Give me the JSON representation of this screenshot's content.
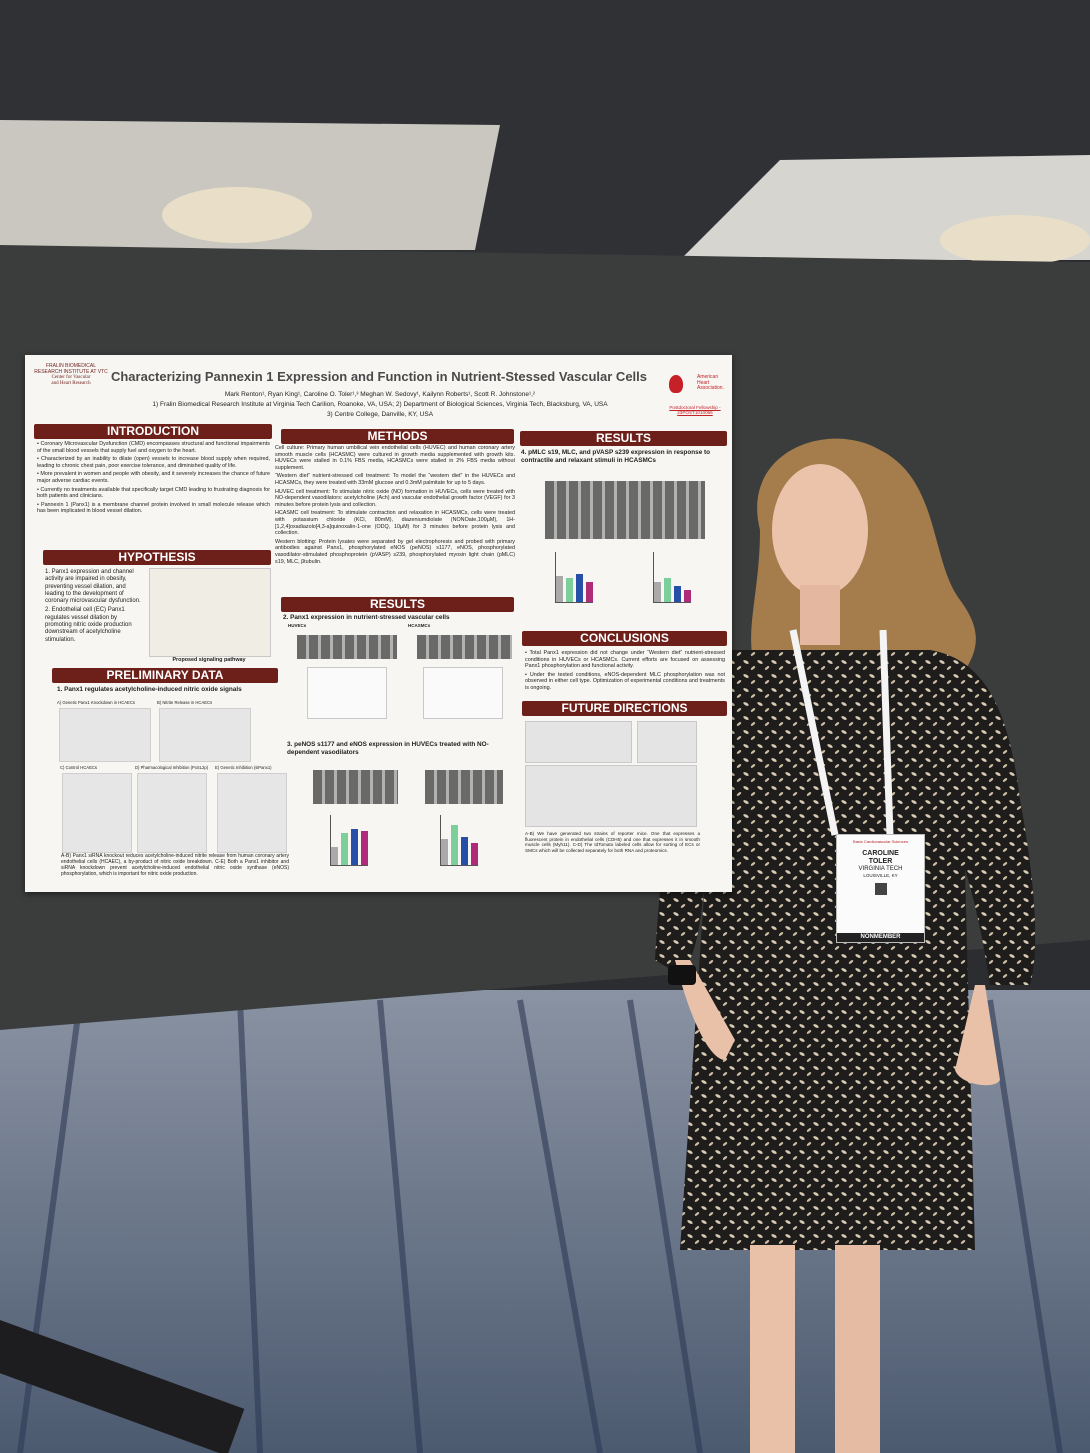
{
  "poster": {
    "institution": [
      "FRALIN BIOMEDICAL",
      "RESEARCH INSTITUTE AT VTC",
      "Center for Vascular",
      "and Heart Research"
    ],
    "title": "Characterizing Pannexin 1 Expression and Function in Nutrient-Stessed Vascular Cells",
    "authors": "Mark Renton¹, Ryan King¹, Caroline O. Toler¹,³ Meghan W. Sedovy¹, Kailynn Roberts¹, Scott R. Johnstone¹,²",
    "affiliations": [
      "1) Fralin Biomedical Research Institute at Virginia Tech Carilion, Roanoke, VA, USA; 2) Department of Biological Sciences, Virginia Tech, Blacksburg, VA, USA",
      "3) Centre College, Danville, KY, USA"
    ],
    "aha": {
      "name": [
        "American",
        "Heart",
        "Association."
      ],
      "grant": "Postdoctoral Fellowship - 23POST1010066"
    },
    "introduction": {
      "heading": "INTRODUCTION",
      "items": [
        "• Coronary Microvascular Dysfunction (CMD) encompasses structural and functional impairments of the small blood vessels that supply fuel and oxygen to the heart.",
        "• Characterized by an inability to dilate (open) vessels to increase blood supply when required, leading to chronic chest pain, poor exercise tolerance, and diminished quality of life.",
        "• More prevalent in women and people with obesity, and it severely increases the chance of future major adverse cardiac events.",
        "• Currently no treatments available that specifically target CMD leading to frustrating diagnosis for both patients and clinicians.",
        "• Pannexin 1 (Panx1) is a membrane channel protein involved in small molecule release which has been implicated in blood vessel dilation."
      ]
    },
    "hypothesis": {
      "heading": "HYPOTHESIS",
      "items": [
        "1. Panx1 expression and channel activity are impaired in obesity, preventing vessel dilation, and leading to the development of coronary microvascular dysfunction.",
        "2. Endothelial cell (EC) Panx1 regulates vessel dilation by promoting nitric oxide production downstream of acetylcholine stimulation."
      ],
      "caption": "Proposed signaling pathway"
    },
    "preliminary": {
      "heading": "PRELIMINARY DATA",
      "subheading": "1. Panx1 regulates acetylcholine-induced nitric oxide signals",
      "panels": [
        "A) Genetic Panx1 Knockdown in HCAECs",
        "B) Nitrite Release in HCAECs",
        "C) Control HCAECs",
        "D) Pharmacological Inhibition (PxSL2p)",
        "E) Genetic Inhibition (siPanx1)"
      ],
      "caption": "A-B) Panx1 siRNA knockout reduces acetylcholine-induced nitrite release from human coronary artery endothelial cells (HCAEC), a by-product of nitric oxide breakdown. C-E) Both a Panx1 inhibitor and siRNA knockdown prevent acetylcholine-induced endothelial nitric oxide synthase (eNOS) phosphorylation, which is important for nitric oxide production."
    },
    "methods": {
      "heading": "METHODS",
      "items": [
        "Cell culture: Primary human umbilical vein endothelial cells (HUVEC) and human coronary artery smooth muscle cells (HCASMC) were cultured in growth media supplemented with growth kits. HUVECs were stalled in 0.1% FBS media, HCASMCs were stalled in 2% FBS media without supplement.",
        "“Western diet” nutrient-stressed cell treatment: To model the “western diet” in the HUVECs and HCASMCs, they were treated with 33mM glucose and 0.3mM palmitate for up to 5 days.",
        "HUVEC cell treatment: To stimulate nitric oxide (NO) formation in HUVECs, cells were treated with NO-dependent vasodilators: acetylcholine (Ach) and vascular endothelial growth factor (VEGF) for 3 minutes before protein lysis and collection.",
        "HCASMC cell treatment: To stimulate contraction and relaxation in HCASMCs, cells were treated with potassium chloride (KCl, 80mM), diazeniumdiolate (NONOate,100µM), 1H-[1,2,4]oxadiazolo[4,3-a]quinoxalin-1-one (ODQ, 10µM) for 3 minutes before protein lysis and collection.",
        "Western blotting: Protein lysates were separated by gel electrophoresis and probed with primary antibodies against Panx1, phosphorylated eNOS (peNOS) s1177, eNOS, phosphorylated vasodilator-stimulated phosphoprotein (pVASP) s239, phosphorylated myosin light chain (pMLC) s19, MLC, βtubulin."
      ]
    },
    "results_mid": {
      "heading": "RESULTS",
      "sub1": "2. Panx1 expression in nutrient-stressed vascular cells",
      "cells": [
        "HUVECs",
        "HCASMCs"
      ],
      "sub2": "3. peNOS s1177 and eNOS expression in HUVECs treated with NO-dependent vasodilators"
    },
    "results_right": {
      "heading": "RESULTS",
      "sub": "4. pMLC s19, MLC, and pVASP s239 expression in response to contractile and relaxant stimuli in HCASMCs"
    },
    "conclusions": {
      "heading": "CONCLUSIONS",
      "items": [
        "• Total Panx1 expression did not change under “Western diet” nutrient-stressed conditions in HUVECs or HCASMCs. Current efforts are focused on assessing Panx1 phosphorylation and functional activity.",
        "• Under the tested conditions, eNOS-dependent MLC phosphorylation was not observed in either cell type. Optimization of experimental conditions and treatments is ongoing."
      ]
    },
    "future": {
      "heading": "FUTURE DIRECTIONS",
      "caption": "A-B) We have generated two strains of reporter mice. One that expresses a fluorescent protein in endothelial cells (CDH5) and one that expresses it in smooth muscle cells (Myh11). C-D) The tdTomato labeled cells allow for sorting of ECs or SMCs which will be collected separately for both RNA and proteomics."
    }
  },
  "badge": {
    "event": "Basic Cardiovascular Sciences",
    "first": "CAROLINE",
    "last": "TOLER",
    "org": "VIRGINIA TECH",
    "city": "LOUISVILLE, KY",
    "type": "NONMEMBER"
  }
}
